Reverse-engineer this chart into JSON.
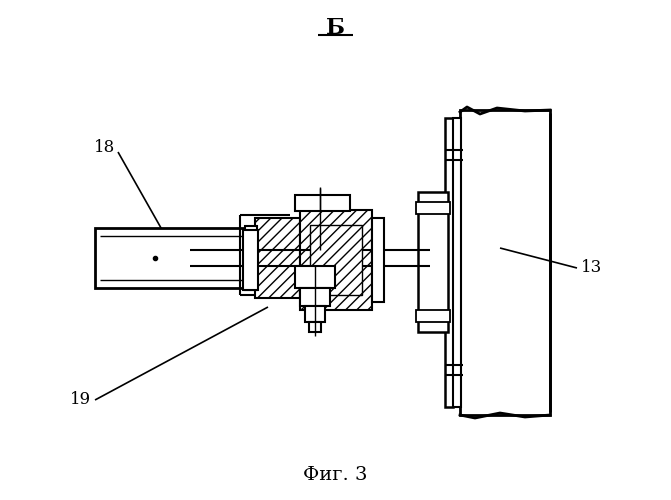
{
  "title": "Б",
  "caption": "Фиг. 3",
  "label_18": "18",
  "label_19": "19",
  "label_13": "13",
  "bg_color": "#ffffff",
  "line_color": "#000000",
  "fig_width": 6.71,
  "fig_height": 5.0,
  "dpi": 100
}
